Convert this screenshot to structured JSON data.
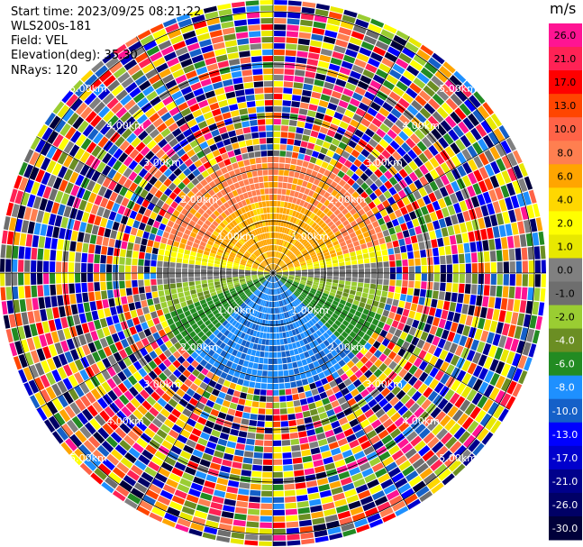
{
  "header": {
    "start_time": "Start time: 2023/09/25 08:21:22",
    "instrument": "WLS200s-181",
    "field": "Field: VEL",
    "elevation": "Elevation(deg): 35.30",
    "nrays": "NRays: 120"
  },
  "chart_data": {
    "type": "ppi",
    "units": "m/s",
    "range_rings": [
      "1.00km",
      "2.00km",
      "3.00km",
      "4.00km",
      "5.00km"
    ],
    "colorbar": {
      "ticks": [
        "26.0",
        "21.0",
        "17.0",
        "13.0",
        "10.0",
        "8.0",
        "6.0",
        "4.0",
        "2.0",
        "1.0",
        "0.0",
        "-1.0",
        "-2.0",
        "-4.0",
        "-6.0",
        "-8.0",
        "-10.0",
        "-13.0",
        "-17.0",
        "-21.0",
        "-26.0",
        "-30.0"
      ],
      "colors": [
        "#ff1493",
        "#ff2255",
        "#ff0000",
        "#ff4500",
        "#ff6347",
        "#ff7f50",
        "#ffa500",
        "#ffd700",
        "#ffff00",
        "#e8e800",
        "#808080",
        "#6e6e6e",
        "#9acd32",
        "#6b8e23",
        "#228b22",
        "#1e90ff",
        "#1560c8",
        "#0000ff",
        "#0000cd",
        "#00008b",
        "#000066",
        "#00003a"
      ]
    }
  }
}
